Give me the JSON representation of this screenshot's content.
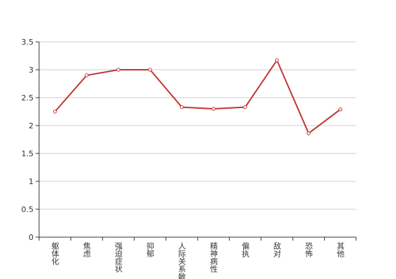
{
  "chart_data": {
    "type": "line",
    "categories": [
      "躯体化",
      "焦虑",
      "强迫症状",
      "抑郁",
      "人际关系敏感",
      "精神病性",
      "偏执",
      "敌对",
      "恐怖",
      "其他"
    ],
    "values": [
      2.25,
      2.9,
      3.0,
      3.0,
      2.33,
      2.3,
      2.33,
      3.17,
      1.86,
      2.29
    ],
    "color": "#c23531",
    "ylim": [
      0,
      3.5
    ],
    "yticks": [
      0,
      0.5,
      1,
      1.5,
      2,
      2.5,
      3,
      3.5
    ],
    "grid": true
  }
}
